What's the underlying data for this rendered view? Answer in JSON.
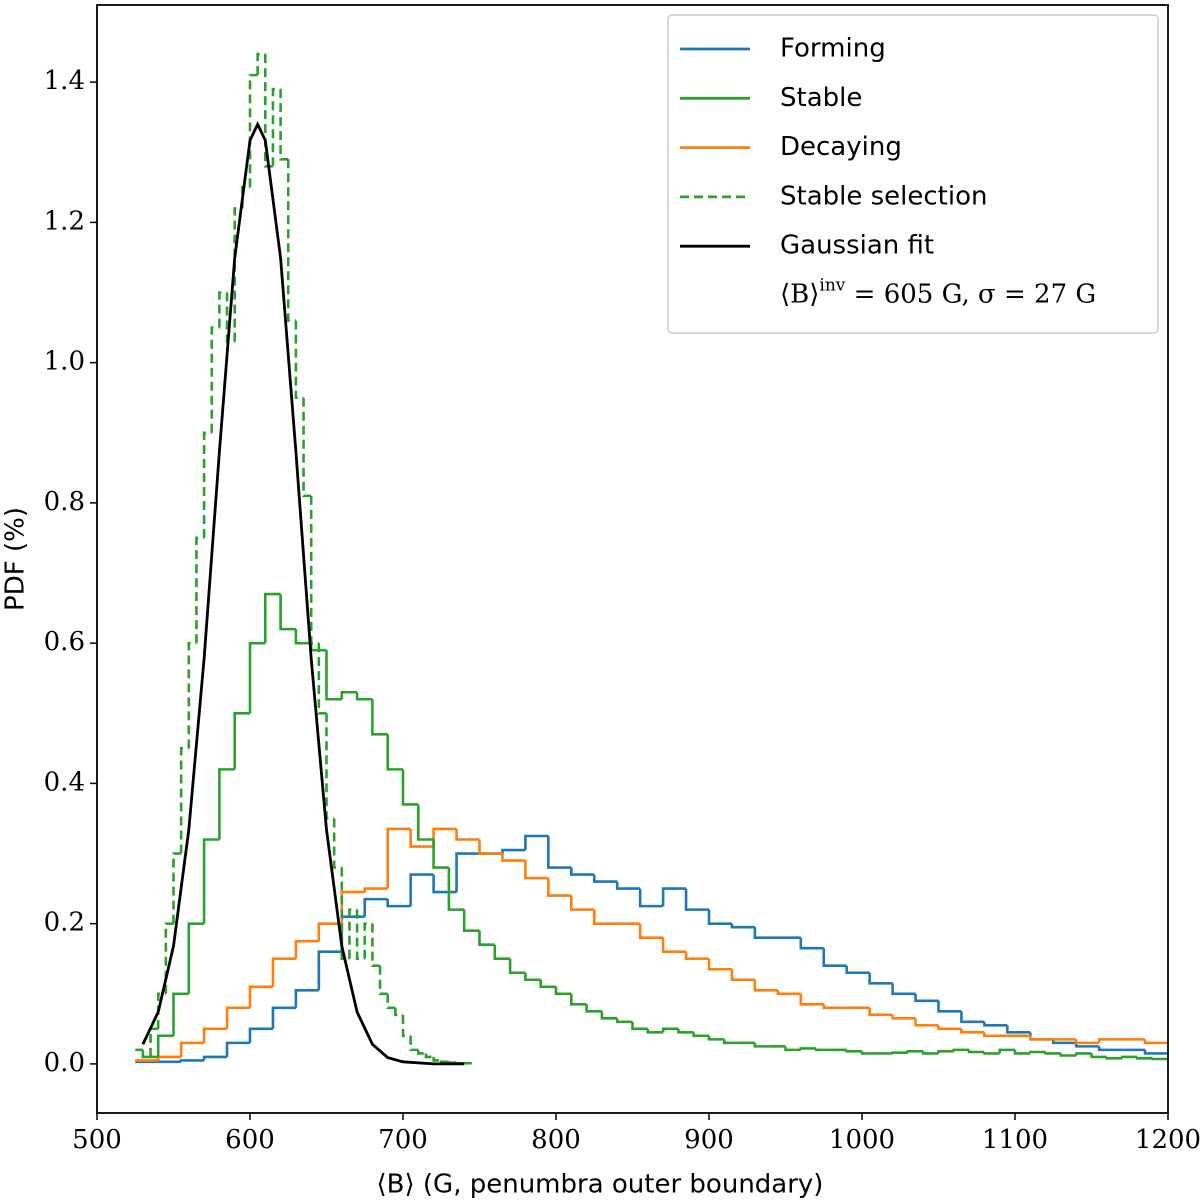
{
  "chart_data": {
    "type": "histogram",
    "xlabel": "⟨B⟩ (G, penumbra outer boundary)",
    "ylabel": "PDF (%)",
    "xlim": [
      500,
      1200
    ],
    "ylim": [
      -0.07,
      1.51
    ],
    "xticks": [
      500,
      600,
      700,
      800,
      900,
      1000,
      1100,
      1200
    ],
    "yticks": [
      {
        "value": 0,
        "label": "0.0"
      },
      {
        "value": 0.2,
        "label": "0.2"
      },
      {
        "value": 0.4,
        "label": "0.4"
      },
      {
        "value": 0.6,
        "label": "0.6"
      },
      {
        "value": 0.8,
        "label": "0.8"
      },
      {
        "value": 1.0,
        "label": "1.0"
      },
      {
        "value": 1.2,
        "label": "1.2"
      },
      {
        "value": 1.4,
        "label": "1.4"
      }
    ],
    "legend": "upper right",
    "legend_note": [
      "⟨B⟩",
      "inv",
      " = 605 G, σ = 27 G"
    ],
    "series": [
      {
        "name": "Forming",
        "color": "#1f77b4",
        "style": "solid",
        "bins": [
          525,
          540,
          555,
          570,
          585,
          600,
          615,
          630,
          645,
          660,
          675,
          690,
          705,
          720,
          735,
          750,
          765,
          780,
          795,
          810,
          825,
          840,
          855,
          870,
          885,
          900,
          915,
          930,
          945,
          960,
          975,
          990,
          1005,
          1020,
          1035,
          1050,
          1065,
          1080,
          1095,
          1110,
          1125,
          1140,
          1155,
          1170,
          1185,
          1200
        ],
        "values": [
          0.003,
          0.003,
          0.005,
          0.01,
          0.03,
          0.05,
          0.08,
          0.105,
          0.16,
          0.21,
          0.235,
          0.225,
          0.27,
          0.245,
          0.3,
          0.3,
          0.305,
          0.325,
          0.28,
          0.27,
          0.26,
          0.25,
          0.225,
          0.25,
          0.22,
          0.2,
          0.195,
          0.18,
          0.18,
          0.165,
          0.14,
          0.13,
          0.115,
          0.1,
          0.09,
          0.075,
          0.06,
          0.055,
          0.045,
          0.035,
          0.03,
          0.025,
          0.02,
          0.02,
          0.015
        ]
      },
      {
        "name": "Stable",
        "color": "#2ca02c",
        "style": "solid",
        "bins": [
          530,
          540,
          550,
          560,
          570,
          580,
          590,
          600,
          610,
          620,
          630,
          640,
          650,
          660,
          670,
          680,
          690,
          700,
          710,
          720,
          730,
          740,
          750,
          760,
          770,
          780,
          790,
          800,
          810,
          820,
          830,
          840,
          850,
          860,
          870,
          880,
          890,
          900,
          910,
          920,
          930,
          940,
          950,
          960,
          970,
          980,
          990,
          1000,
          1010,
          1020,
          1030,
          1040,
          1050,
          1060,
          1070,
          1080,
          1090,
          1100,
          1110,
          1120,
          1130,
          1140,
          1150,
          1160,
          1170,
          1180,
          1190,
          1200
        ],
        "values": [
          0.01,
          0.04,
          0.1,
          0.2,
          0.32,
          0.42,
          0.5,
          0.6,
          0.67,
          0.62,
          0.6,
          0.59,
          0.52,
          0.53,
          0.52,
          0.47,
          0.42,
          0.37,
          0.32,
          0.28,
          0.22,
          0.19,
          0.17,
          0.15,
          0.13,
          0.12,
          0.11,
          0.1,
          0.085,
          0.075,
          0.065,
          0.06,
          0.05,
          0.045,
          0.05,
          0.045,
          0.04,
          0.035,
          0.03,
          0.03,
          0.025,
          0.025,
          0.02,
          0.022,
          0.02,
          0.02,
          0.018,
          0.015,
          0.015,
          0.016,
          0.018,
          0.015,
          0.018,
          0.02,
          0.017,
          0.015,
          0.02,
          0.015,
          0.017,
          0.015,
          0.012,
          0.015,
          0.01,
          0.008,
          0.01,
          0.008,
          0.007
        ]
      },
      {
        "name": "Decaying",
        "color": "#ff7f0e",
        "style": "solid",
        "bins": [
          525,
          540,
          555,
          570,
          585,
          600,
          615,
          630,
          645,
          660,
          675,
          690,
          705,
          720,
          735,
          750,
          765,
          780,
          795,
          810,
          825,
          840,
          855,
          870,
          885,
          900,
          915,
          930,
          945,
          960,
          975,
          990,
          1005,
          1020,
          1035,
          1050,
          1065,
          1080,
          1095,
          1110,
          1125,
          1140,
          1155,
          1170,
          1185,
          1200
        ],
        "values": [
          0.005,
          0.01,
          0.03,
          0.05,
          0.08,
          0.11,
          0.15,
          0.175,
          0.2,
          0.245,
          0.25,
          0.335,
          0.31,
          0.335,
          0.32,
          0.3,
          0.29,
          0.265,
          0.24,
          0.22,
          0.2,
          0.2,
          0.18,
          0.16,
          0.15,
          0.135,
          0.12,
          0.105,
          0.1,
          0.085,
          0.08,
          0.08,
          0.07,
          0.065,
          0.055,
          0.05,
          0.045,
          0.04,
          0.04,
          0.035,
          0.035,
          0.03,
          0.035,
          0.035,
          0.03
        ]
      },
      {
        "name": "Stable selection",
        "color": "#2ca02c",
        "style": "dashed",
        "bins": [
          525,
          530,
          535,
          540,
          545,
          550,
          555,
          560,
          565,
          570,
          575,
          580,
          585,
          590,
          595,
          600,
          605,
          610,
          615,
          620,
          625,
          630,
          635,
          640,
          645,
          650,
          655,
          660,
          665,
          670,
          675,
          680,
          685,
          690,
          695,
          700,
          705,
          710,
          715,
          720,
          725,
          730,
          735,
          740,
          745
        ],
        "values": [
          0.02,
          0.01,
          0.05,
          0.1,
          0.2,
          0.3,
          0.45,
          0.6,
          0.75,
          0.9,
          1.05,
          1.1,
          1.03,
          1.22,
          1.25,
          1.41,
          1.44,
          1.28,
          1.39,
          1.29,
          1.06,
          0.95,
          0.81,
          0.6,
          0.5,
          0.35,
          0.28,
          0.15,
          0.22,
          0.15,
          0.2,
          0.14,
          0.1,
          0.08,
          0.07,
          0.04,
          0.02,
          0.015,
          0.01,
          0.005,
          0.003,
          0.002,
          0.001,
          0.001
        ]
      },
      {
        "name": "Gaussian fit",
        "color": "#000000",
        "style": "solid",
        "kind": "curve",
        "x": [
          530,
          540,
          550,
          560,
          570,
          580,
          590,
          600,
          605,
          610,
          620,
          630,
          640,
          650,
          660,
          670,
          680,
          690,
          700,
          720,
          740
        ],
        "values": [
          0.028,
          0.074,
          0.168,
          0.334,
          0.578,
          0.873,
          1.149,
          1.317,
          1.34,
          1.317,
          1.149,
          0.873,
          0.578,
          0.334,
          0.168,
          0.074,
          0.028,
          0.009,
          0.003,
          0.0,
          0.0
        ]
      }
    ]
  }
}
